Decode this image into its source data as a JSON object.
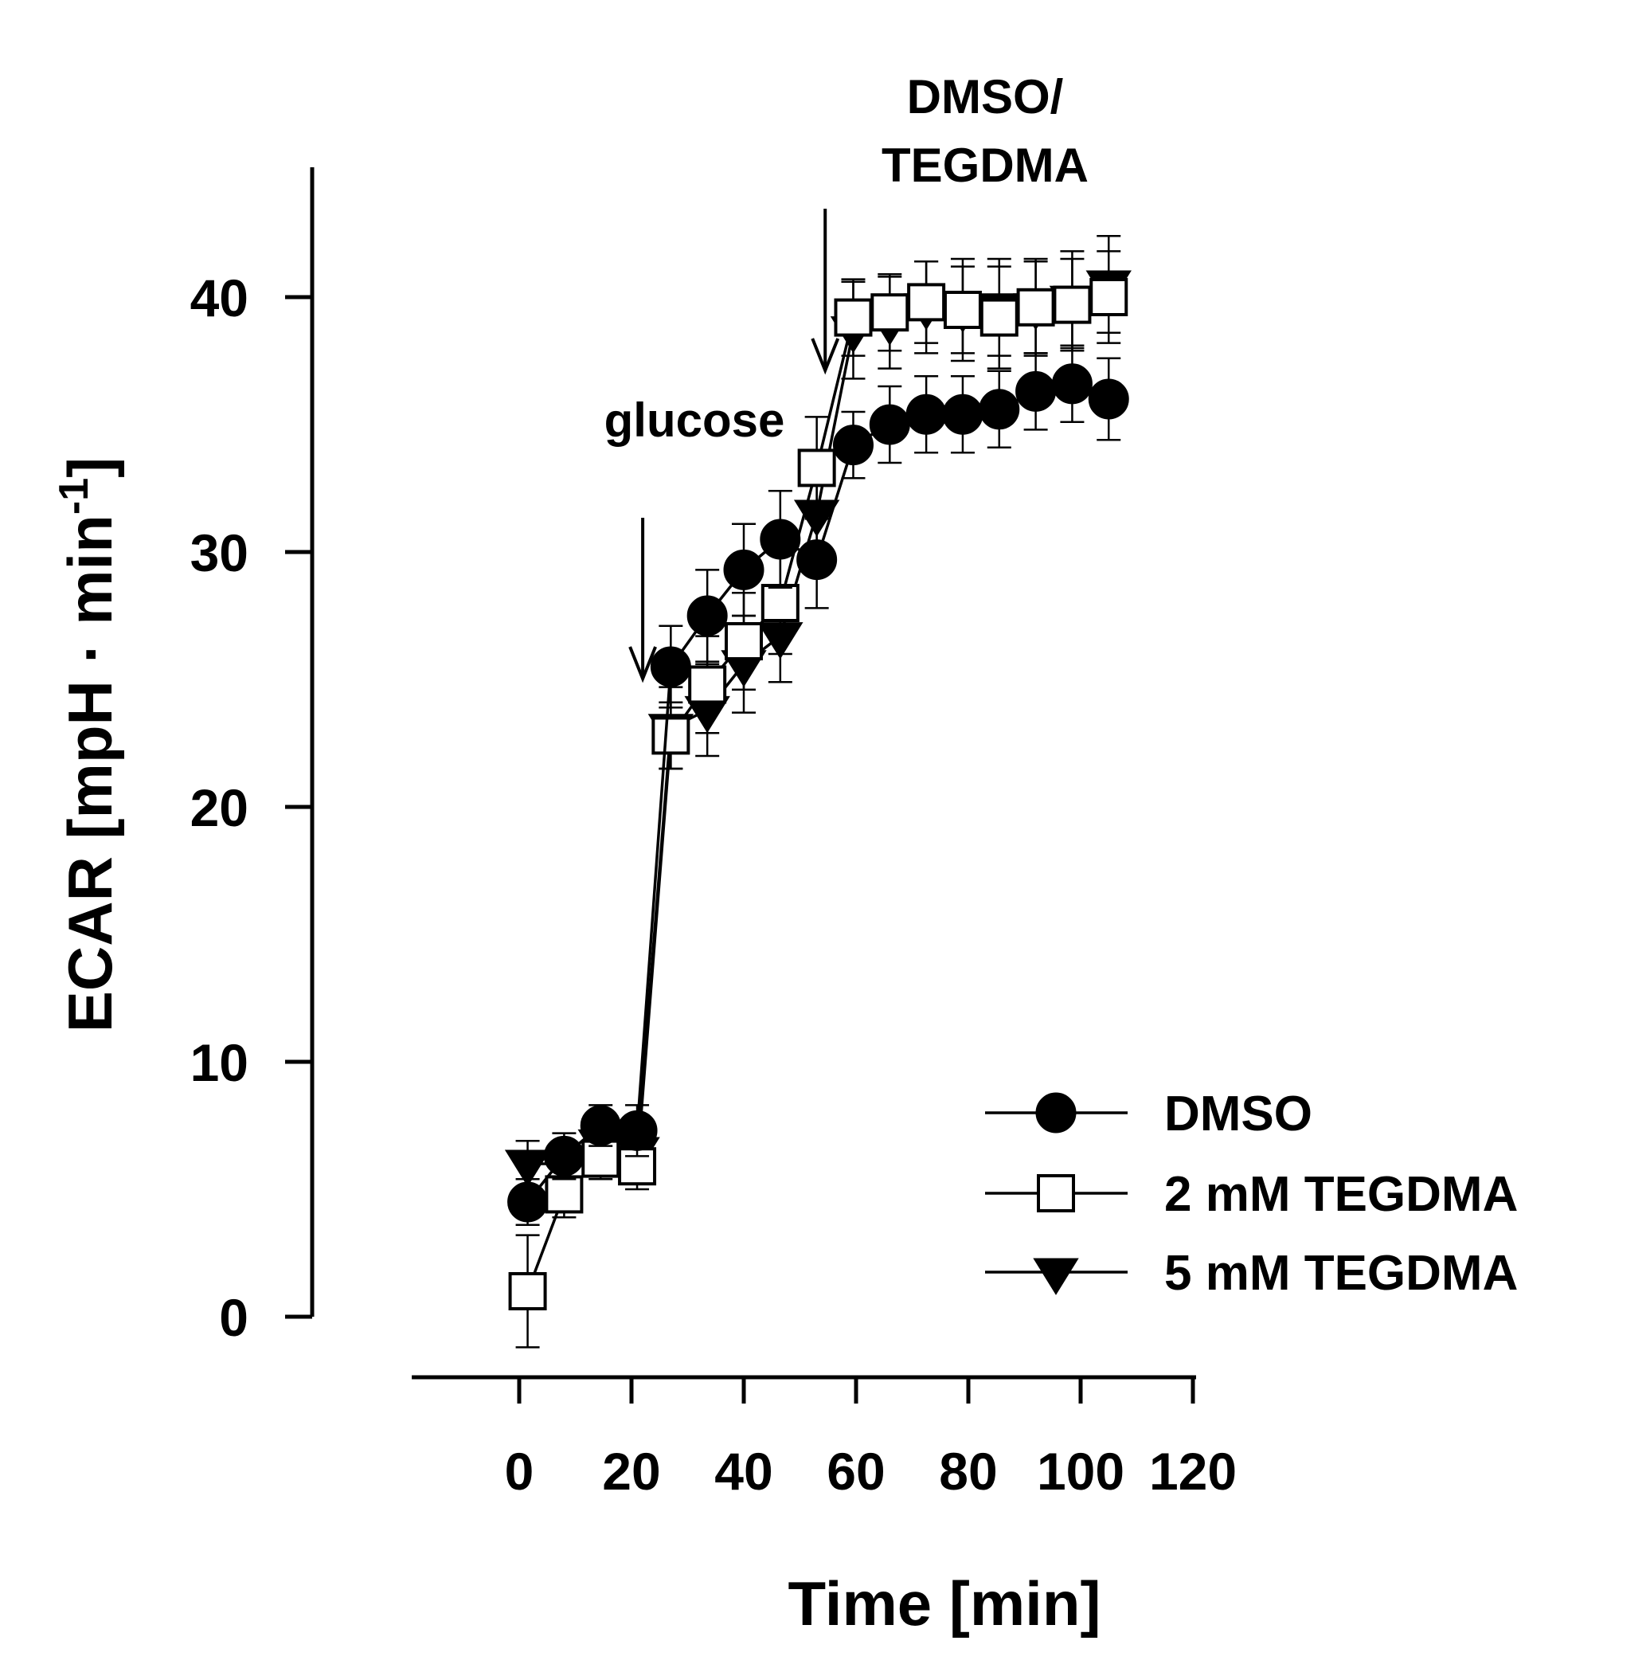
{
  "chart_data": {
    "type": "line",
    "title": "",
    "xlabel": "Time [min]",
    "ylabel": "ECAR [mpH · min",
    "ylabel_sup": "-1",
    "ylabel_close": "]",
    "xlim": [
      -18,
      120
    ],
    "ylim": [
      0,
      45
    ],
    "xticks": [
      0,
      20,
      40,
      60,
      80,
      100,
      120
    ],
    "xtick_labels": [
      "0",
      "20",
      "40",
      "60",
      "80",
      "100",
      "120"
    ],
    "yticks": [
      0,
      10,
      20,
      30,
      40
    ],
    "ytick_labels": [
      "0",
      "10",
      "20",
      "30",
      "40"
    ],
    "grid": false,
    "legend_position": "bottom-right",
    "x": [
      1.5,
      8,
      14.5,
      21,
      27,
      33.5,
      40,
      46.5,
      53,
      59.5,
      66,
      72.5,
      79,
      85.5,
      92,
      98.5,
      105
    ],
    "series": [
      {
        "name": "DMSO",
        "marker": "filled-circle",
        "values": [
          4.5,
          6.3,
          7.5,
          7.3,
          25.5,
          27.5,
          29.3,
          30.5,
          29.7,
          34.2,
          35.0,
          35.4,
          35.4,
          35.6,
          36.3,
          36.6,
          36.0
        ],
        "errors": [
          0.9,
          0.9,
          0.8,
          1.0,
          1.6,
          1.8,
          1.8,
          1.9,
          1.9,
          1.3,
          1.5,
          1.5,
          1.5,
          1.5,
          1.5,
          1.5,
          1.6
        ]
      },
      {
        "name": "2 mM TEGDMA",
        "marker": "open-square",
        "values": [
          1.0,
          4.8,
          6.2,
          5.9,
          22.8,
          24.8,
          26.5,
          28.0,
          33.3,
          39.2,
          39.4,
          39.8,
          39.5,
          39.2,
          39.6,
          39.7,
          40.0
        ],
        "errors": [
          2.2,
          0.9,
          0.8,
          0.9,
          1.3,
          1.9,
          1.9,
          2.0,
          2.0,
          1.5,
          1.5,
          1.6,
          1.7,
          2.0,
          1.8,
          1.8,
          1.8
        ]
      },
      {
        "name": "5 mM TEGDMA",
        "marker": "filled-triangle-down",
        "values": [
          6.0,
          6.0,
          6.8,
          6.5,
          23.1,
          23.8,
          25.6,
          26.7,
          31.5,
          38.7,
          39.0,
          39.6,
          39.5,
          39.6,
          39.6,
          39.9,
          40.5
        ],
        "errors": [
          0.9,
          0.9,
          0.8,
          1.0,
          1.6,
          1.8,
          1.9,
          1.8,
          2.1,
          1.9,
          1.8,
          1.8,
          2.0,
          1.9,
          1.9,
          1.9,
          1.9
        ]
      }
    ],
    "annotations": [
      {
        "id": "glucose",
        "text": "glucose",
        "x": 22
      },
      {
        "id": "treatment",
        "text_lines": [
          "DMSO/",
          "TEGDMA"
        ],
        "x": 54.5
      }
    ]
  }
}
